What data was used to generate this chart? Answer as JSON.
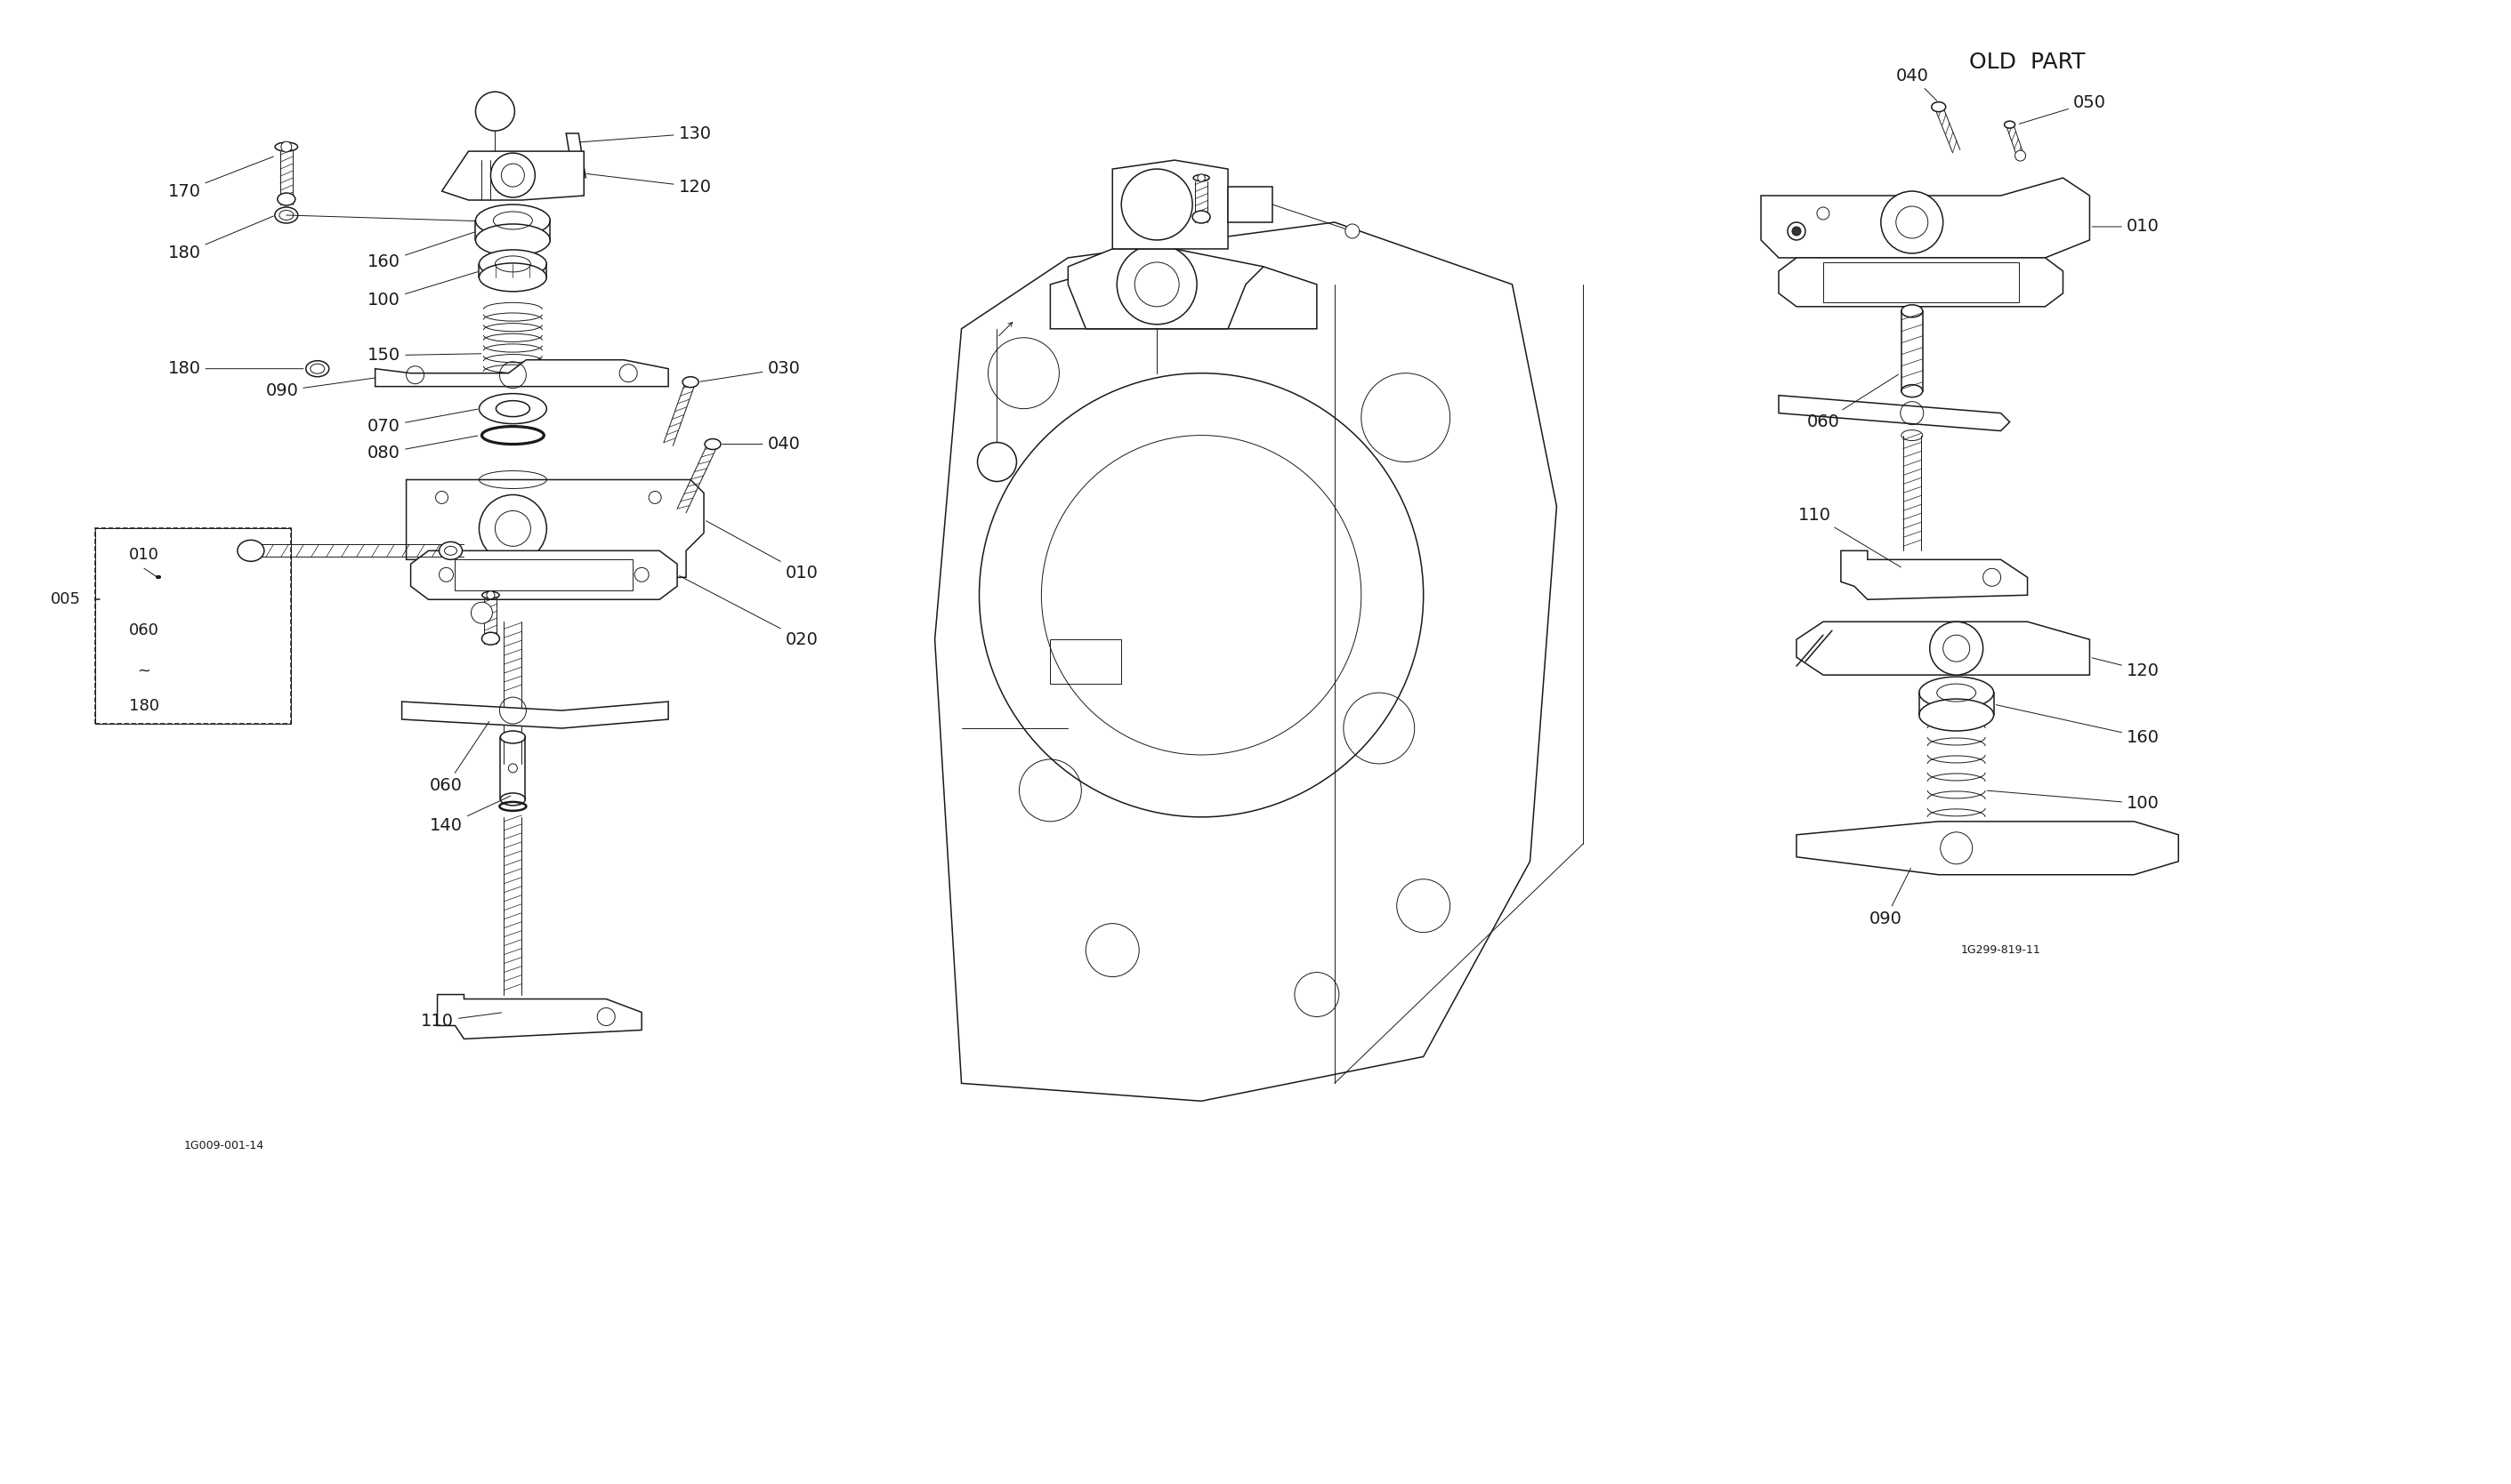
{
  "background_color": "#ffffff",
  "figure_width": 28.22,
  "figure_height": 16.69,
  "old_part_label": "OLD  PART",
  "diagram_code_left": "1G009-001-14",
  "diagram_code_right": "1G299-819-11",
  "lw_thin": 0.7,
  "lw_med": 1.1,
  "lw_thick": 1.8,
  "color": "#1a1a1a"
}
